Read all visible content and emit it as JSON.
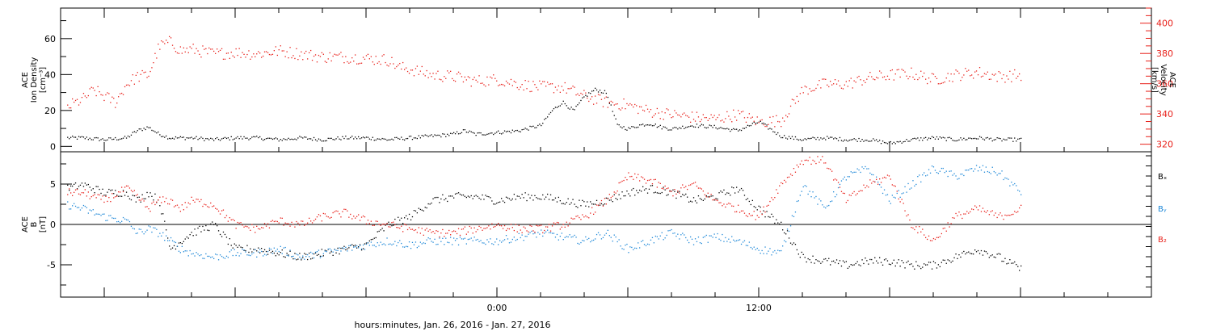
{
  "colors": {
    "black": "#000000",
    "red": "#e8201a",
    "blue": "#1e88d8"
  },
  "chart_data": [
    {
      "type": "scatter",
      "panel": "top",
      "left_axis": {
        "label_lines": [
          "ACE",
          "Ion Density",
          "[cm⁻³]"
        ],
        "ylim": [
          -3,
          77
        ],
        "ticks": [
          0,
          20,
          40,
          60
        ],
        "tick_labels": [
          "0",
          "20",
          "40",
          "60"
        ]
      },
      "right_axis": {
        "label_lines": [
          "ACE",
          "Velocity",
          "[km/s]"
        ],
        "ylim": [
          315,
          410
        ],
        "ticks": [
          320,
          340,
          360,
          380,
          400
        ],
        "tick_labels": [
          "320",
          "340",
          "360",
          "380",
          "400"
        ],
        "color": "#e8201a"
      },
      "series": [
        {
          "color": "#000000",
          "axis": "left",
          "x": [
            -19.7,
            -19,
            -18,
            -17,
            -16.5,
            -16,
            -15.5,
            -15,
            -14.5,
            -14,
            -13,
            -12,
            -11,
            -10,
            -9,
            -8,
            -7,
            -6,
            -5,
            -4,
            -3,
            -2,
            -1.5,
            -1,
            0,
            1,
            2,
            2.5,
            3,
            3.5,
            4,
            4.5,
            5,
            5.5,
            6,
            6.5,
            7,
            7.5,
            8,
            9,
            10,
            11,
            12,
            13,
            14,
            15,
            16,
            17,
            18,
            19,
            20,
            21,
            22,
            23,
            24
          ],
          "y": [
            5,
            5,
            4,
            5,
            9,
            11,
            7,
            5,
            5,
            5,
            4,
            5,
            5,
            4,
            5,
            4,
            5,
            5,
            4,
            5,
            6,
            7,
            9,
            7,
            8,
            9,
            12,
            20,
            25,
            20,
            28,
            32,
            30,
            12,
            10,
            12,
            13,
            11,
            10,
            12,
            11,
            9,
            14,
            6,
            4,
            5,
            4,
            4,
            2,
            4,
            5,
            4,
            5,
            4,
            4
          ]
        },
        {
          "color": "#e8201a",
          "axis": "right",
          "x": [
            -19.7,
            -19,
            -18.5,
            -18,
            -17.5,
            -17,
            -16.5,
            -16,
            -15.5,
            -15,
            -14.5,
            -14,
            -13,
            -12,
            -11,
            -10,
            -9,
            -8,
            -7,
            -6,
            -5,
            -4.5,
            -4,
            -3,
            -2,
            -1,
            0,
            1,
            2,
            3,
            4,
            5,
            6,
            7,
            8,
            9,
            10,
            11,
            12,
            13,
            14,
            15,
            16,
            17,
            18,
            19,
            20,
            21,
            22,
            23,
            24
          ],
          "y": [
            345,
            350,
            356,
            352,
            348,
            360,
            365,
            366,
            385,
            388,
            382,
            383,
            380,
            381,
            380,
            382,
            380,
            378,
            378,
            377,
            376,
            371,
            370,
            366,
            365,
            362,
            363,
            360,
            358,
            358,
            352,
            348,
            346,
            342,
            340,
            338,
            337,
            340,
            335,
            336,
            356,
            360,
            360,
            364,
            366,
            367,
            363,
            366,
            368,
            365,
            366
          ]
        }
      ]
    },
    {
      "type": "scatter",
      "panel": "bottom",
      "left_axis": {
        "label_lines": [
          "ACE",
          "B",
          "[nT]"
        ],
        "ylim": [
          -9,
          9
        ],
        "ticks": [
          -5,
          0,
          5
        ],
        "tick_labels": [
          "-5",
          "0",
          "5"
        ]
      },
      "zero_line": true,
      "legend": [
        "Bₓ",
        "Bᵧ",
        "B₂"
      ],
      "series": [
        {
          "name": "Bₓ",
          "color": "#000000",
          "x": [
            -19.7,
            -19,
            -18,
            -17,
            -16.5,
            -16,
            -15.5,
            -15,
            -14.5,
            -14,
            -13,
            -12,
            -11,
            -10,
            -9,
            -8,
            -7,
            -6,
            -5,
            -4,
            -3,
            -2,
            -1,
            0,
            1,
            2,
            3,
            4,
            5,
            6,
            7,
            8,
            9,
            10,
            11,
            12,
            13,
            14,
            15,
            16,
            17,
            18,
            19,
            20,
            21,
            22,
            23,
            24
          ],
          "y": [
            4.5,
            5,
            4,
            4,
            3,
            4,
            3,
            -3,
            -2,
            -1,
            0,
            -3,
            -3,
            -3.5,
            -4,
            -3.5,
            -3,
            -2.5,
            0,
            1,
            3,
            3.5,
            3.5,
            3,
            3.5,
            3.5,
            3,
            2.5,
            3,
            4,
            4.5,
            4,
            3,
            3.5,
            4.5,
            2,
            0,
            -4,
            -4.5,
            -5,
            -4.5,
            -4.5,
            -5,
            -5,
            -4,
            -3,
            -4,
            -5.5
          ]
        },
        {
          "name": "Bᵧ",
          "color": "#1e88d8",
          "x": [
            -19.7,
            -19,
            -18,
            -17,
            -16.5,
            -16,
            -15.5,
            -15,
            -14.5,
            -14,
            -13,
            -12,
            -11,
            -10,
            -9,
            -8,
            -7,
            -6,
            -5,
            -4,
            -3,
            -2,
            -1,
            0,
            1,
            2,
            3,
            4,
            5,
            6,
            7,
            8,
            9,
            10,
            11,
            12,
            13,
            14,
            15,
            16,
            17,
            18,
            19,
            20,
            21,
            22,
            23,
            24
          ],
          "y": [
            2.5,
            2,
            1,
            0.5,
            -1,
            -0.5,
            -1,
            -2,
            -3,
            -3.5,
            -4,
            -3.5,
            -3.5,
            -3,
            -4,
            -3.5,
            -3,
            -2.5,
            -2,
            -2.5,
            -2,
            -2,
            -2,
            -2,
            -1.5,
            -1,
            -1.5,
            -2,
            -1,
            -3,
            -2,
            -1,
            -2,
            -1.5,
            -2,
            -3,
            -3.5,
            5,
            2,
            6,
            7,
            3,
            5,
            7,
            6,
            7,
            6.5,
            4
          ]
        },
        {
          "name": "B₂",
          "color": "#e8201a",
          "x": [
            -19.7,
            -19,
            -18,
            -17,
            -16.5,
            -16,
            -15.5,
            -15,
            -14.5,
            -14,
            -13,
            -12,
            -11,
            -10,
            -9,
            -8,
            -7,
            -6,
            -5,
            -4,
            -3,
            -2,
            -1,
            0,
            1,
            2,
            3,
            4,
            5,
            6,
            7,
            8,
            9,
            10,
            11,
            12,
            13,
            14,
            15,
            16,
            17,
            18,
            19,
            20,
            21,
            22,
            23,
            24
          ],
          "y": [
            4,
            4,
            3,
            4.5,
            3.5,
            2,
            3,
            3,
            2,
            3,
            2.5,
            0,
            -0.5,
            0.5,
            0,
            1,
            1.5,
            0.5,
            0,
            -0.5,
            -1,
            -1,
            -0.5,
            0,
            -0.5,
            -0.5,
            0,
            1,
            3,
            6,
            5.5,
            4,
            5,
            3,
            2,
            1,
            5,
            8,
            8,
            3,
            5,
            6,
            0,
            -2,
            1,
            2,
            1,
            2
          ]
        }
      ]
    }
  ],
  "x_axis": {
    "xlim": [
      -20,
      30
    ],
    "major_ticks": [
      -24,
      -18,
      -12,
      -6,
      0,
      6,
      12,
      18,
      24,
      30
    ],
    "tick_labels": [
      {
        "x": 0,
        "text": "0:00"
      },
      {
        "x": 12,
        "text": "12:00"
      }
    ],
    "label": "hours:minutes, Jan. 26, 2016 - Jan. 27, 2016"
  }
}
